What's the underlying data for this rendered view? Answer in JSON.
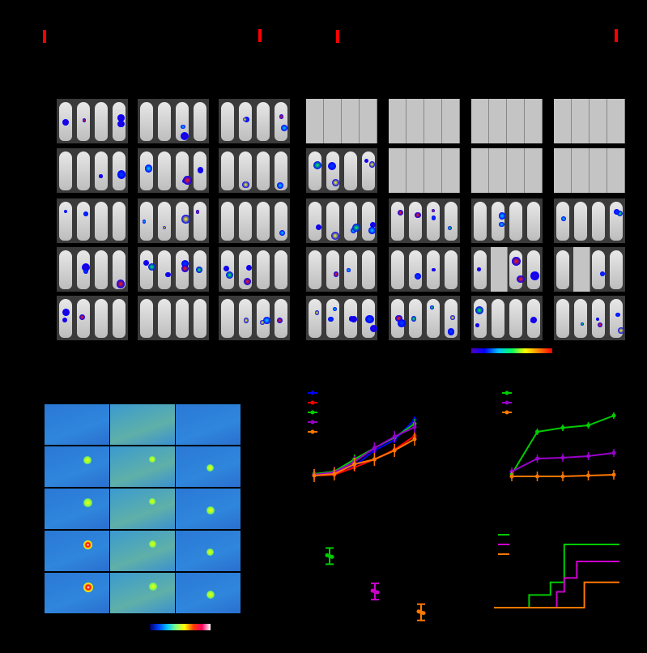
{
  "colors": {
    "marker": "#ff0000",
    "series_blue": "#0000ff",
    "series_red": "#ff0000",
    "series_green": "#00cc00",
    "series_purple": "#9900cc",
    "series_orange": "#ff7700",
    "series_magenta": "#cc00cc"
  },
  "imaging": {
    "left_group": {
      "columns": 3,
      "rows": 5
    },
    "right_group": {
      "columns": 4,
      "rows": 5,
      "placeholder_panels": [
        [
          0,
          0
        ],
        [
          0,
          1
        ],
        [
          0,
          2
        ],
        [
          0,
          3
        ],
        [
          1,
          1
        ],
        [
          1,
          2
        ],
        [
          1,
          3
        ]
      ],
      "missing_subjects": [
        [
          3,
          2,
          1
        ],
        [
          3,
          3,
          1
        ]
      ]
    },
    "colorbar": "rainbow"
  },
  "thermal": {
    "columns": 3,
    "rows": 5,
    "colorbar": "jet"
  },
  "chart_data": [
    {
      "type": "line",
      "x": [
        1,
        2,
        3,
        4,
        5,
        6
      ],
      "series": [
        {
          "color": "#0000ff",
          "values": [
            3,
            7,
            15,
            34,
            47,
            72
          ]
        },
        {
          "color": "#ff0000",
          "values": [
            3,
            4,
            13,
            23,
            35,
            52
          ]
        },
        {
          "color": "#00cc00",
          "values": [
            5,
            8,
            23,
            37,
            50,
            67
          ]
        },
        {
          "color": "#9900cc",
          "values": [
            4,
            7,
            20,
            37,
            51,
            63
          ]
        },
        {
          "color": "#ff7700",
          "values": [
            3,
            5,
            17,
            23,
            34,
            48
          ]
        }
      ],
      "legend": "top-left",
      "grid": false
    },
    {
      "type": "line",
      "x": [
        1,
        2,
        3,
        4,
        5
      ],
      "series": [
        {
          "color": "#00cc00",
          "values": [
            4,
            56,
            61,
            64,
            76
          ]
        },
        {
          "color": "#9900cc",
          "values": [
            7,
            23,
            24,
            26,
            30
          ]
        },
        {
          "color": "#ff7700",
          "values": [
            1,
            1,
            1,
            2,
            3
          ]
        }
      ],
      "legend": "top-left",
      "grid": false
    },
    {
      "type": "scatter",
      "categories": [
        1,
        2,
        3
      ],
      "series": [
        {
          "color": "#00cc00",
          "values": [
            88
          ]
        },
        {
          "color": "#cc00cc",
          "values": [
            42
          ]
        },
        {
          "color": "#ff7700",
          "values": [
            15
          ]
        }
      ]
    },
    {
      "type": "line",
      "step": true,
      "series": [
        {
          "color": "#00cc00",
          "x": [
            0,
            28,
            45,
            56,
            100
          ],
          "values": [
            0,
            0.2,
            0.4,
            1.0,
            1.0
          ]
        },
        {
          "color": "#cc00cc",
          "x": [
            0,
            50,
            56,
            66,
            100
          ],
          "values": [
            0,
            0.25,
            0.47,
            0.73,
            0.73
          ]
        },
        {
          "color": "#ff7700",
          "x": [
            0,
            72,
            100
          ],
          "values": [
            0,
            0.4,
            0.4
          ]
        }
      ],
      "legend": "top-left",
      "ylim": [
        0,
        1
      ]
    }
  ]
}
